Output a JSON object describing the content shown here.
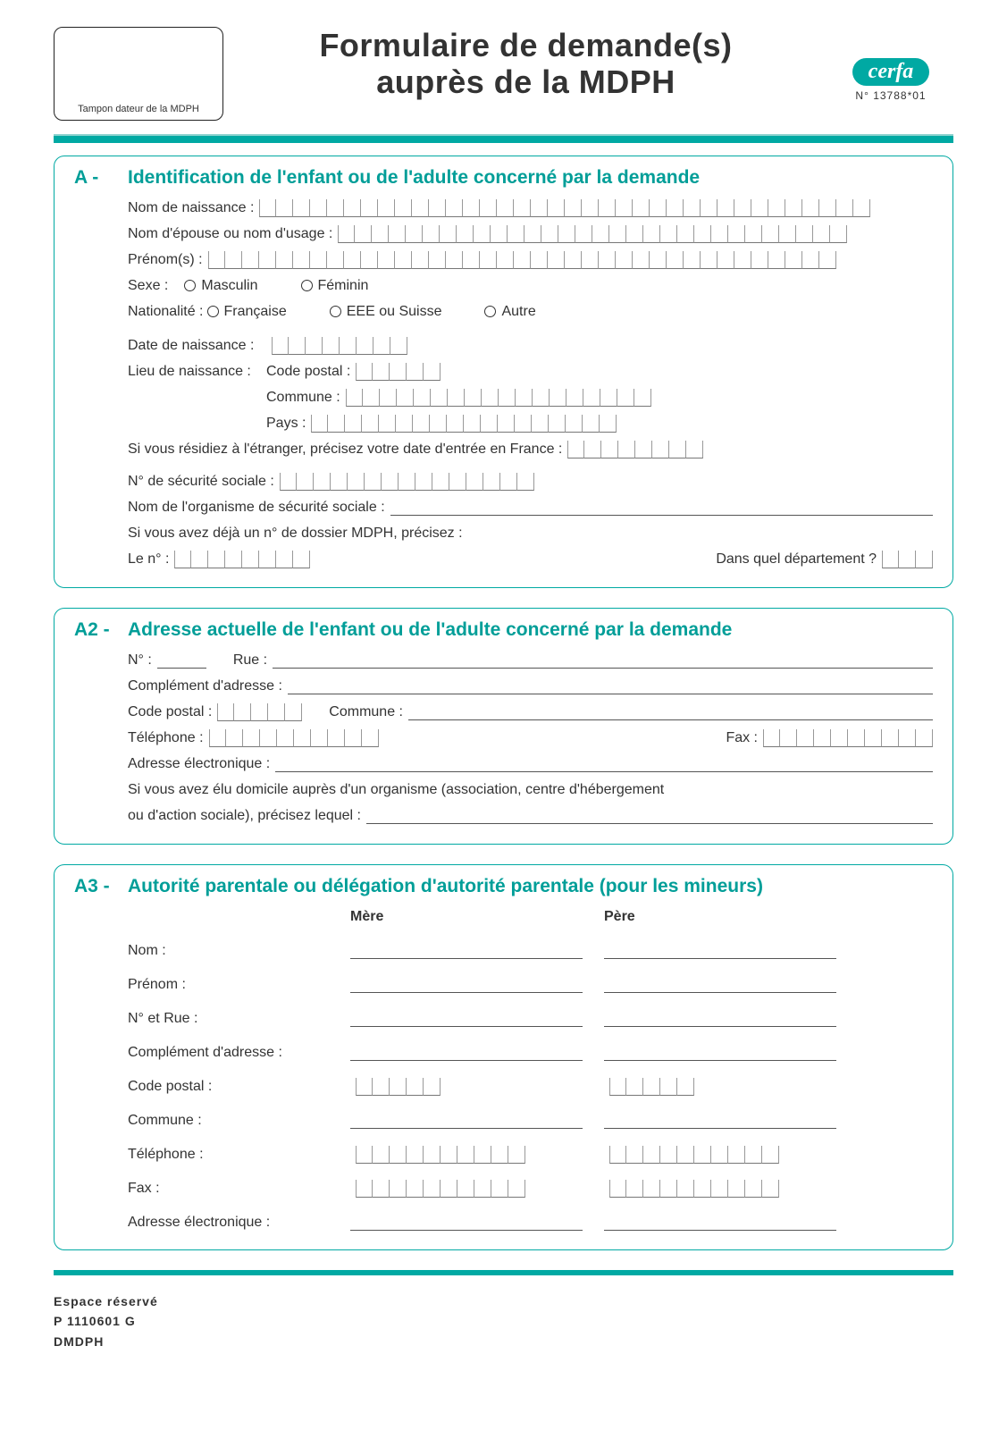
{
  "colors": {
    "teal": "#00a9a3",
    "text": "#333333",
    "border": "#777777"
  },
  "header": {
    "stamp_label": "Tampon dateur de la MDPH",
    "title_l1": "Formulaire de demande(s)",
    "title_l2": "auprès de la MDPH",
    "cerfa": "cerfa",
    "cerfa_num": "N° 13788*01"
  },
  "A": {
    "letter": "A -",
    "title": "Identification de l'enfant ou de l'adulte concerné par la demande",
    "nom_naissance": "Nom de naissance :",
    "nom_epouse": "Nom d'épouse ou nom d'usage :",
    "prenoms": "Prénom(s) :",
    "sexe": "Sexe :",
    "masculin": "Masculin",
    "feminin": "Féminin",
    "nationalite": "Nationalité :",
    "francaise": "Française",
    "eee": "EEE ou Suisse",
    "autre": "Autre",
    "date_naissance": "Date de naissance :",
    "lieu_naissance": "Lieu de naissance :",
    "cp": "Code postal :",
    "commune": "Commune :",
    "pays": "Pays :",
    "etranger": "Si vous résidiez à l'étranger, précisez votre date d'entrée en France :",
    "secu": "N° de sécurité sociale :",
    "organisme": "Nom de l'organisme de sécurité sociale :",
    "dossier": "Si vous avez déjà un n° de dossier MDPH, précisez :",
    "le_no": "Le n° :",
    "dept": "Dans quel département ?",
    "box_counts": {
      "nom_naissance": 36,
      "nom_epouse": 30,
      "prenoms": 37,
      "date_naissance": 8,
      "cp": 5,
      "commune": 18,
      "pays": 18,
      "entree_france": 8,
      "secu": 15,
      "le_no": 8,
      "dept": 3
    }
  },
  "A2": {
    "letter": "A2 -",
    "title": "Adresse actuelle de l'enfant ou de l'adulte concerné par la demande",
    "no": "N° :",
    "rue": "Rue :",
    "complement": "Complément d'adresse :",
    "cp": "Code postal :",
    "commune": "Commune :",
    "tel": "Téléphone :",
    "fax": "Fax :",
    "email": "Adresse électronique :",
    "domicile": "Si vous avez élu domicile auprès d'un organisme (association, centre d'hébergement",
    "domicile2": "ou d'action sociale), précisez lequel :",
    "box_counts": {
      "cp": 5,
      "tel": 10,
      "fax": 10
    }
  },
  "A3": {
    "letter": "A3 -",
    "title": "Autorité parentale ou délégation d'autorité parentale (pour les mineurs)",
    "mere": "Mère",
    "pere": "Père",
    "nom": "Nom :",
    "prenom": "Prénom :",
    "rue": "N° et Rue :",
    "complement": "Complément d'adresse :",
    "cp": "Code postal :",
    "commune": "Commune :",
    "tel": "Téléphone :",
    "fax": "Fax :",
    "email": "Adresse électronique :",
    "box_counts": {
      "cp": 5,
      "tel": 10,
      "fax": 10
    }
  },
  "footer": {
    "l1": "Espace réservé",
    "l2": "P  1110601 G",
    "l3": "DMDPH"
  }
}
